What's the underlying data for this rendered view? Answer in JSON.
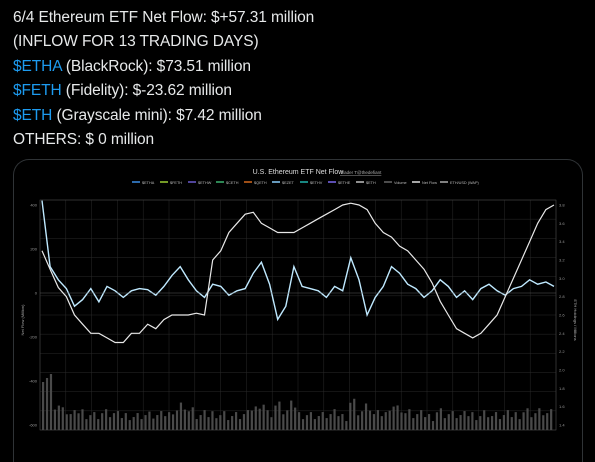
{
  "post": {
    "line1": "6/4 Ethereum ETF Net Flow: $+57.31 million",
    "line2": "(INFLOW FOR 13 TRADING DAYS)",
    "line3": {
      "tag": "$ETHA",
      "rest": " (BlackRock): $73.51 million"
    },
    "line4": {
      "tag": "$FETH",
      "rest": " (Fidelity): $-23.62 million"
    },
    "line5": {
      "tag": "$ETH",
      "rest": " (Grayscale mini): $7.42 million"
    },
    "line6": "OTHERS: $ 0 million"
  },
  "colors": {
    "cashtag": "#1d9bf0",
    "flow_line": "#bfe9ff",
    "eth_price_line": "#e8e8e8",
    "aum_line": "#8a8a8a",
    "volume_bars": "#4a4a4a",
    "grid": "#2a2a2a"
  },
  "chart_data": {
    "type": "line",
    "title": "U.S. Ethereum ETF Net Flow",
    "subtitle": "Trader T@thedefiant",
    "legend": [
      "$ETHA",
      "$FETH",
      "$ETHW",
      "$CETH",
      "$QETH",
      "$EZET",
      "$ETHV",
      "$ETHE",
      "$ETH",
      "Volume",
      "Net Flow",
      "ETH/USD (WAP)"
    ],
    "legend_placement": "top",
    "ylabel_left": "Net Flow (Million)",
    "ylabel_right": "ETH Holdings / Millions",
    "y_left_ticks": [
      "400",
      "200",
      "0",
      "-200",
      "-400",
      "-600"
    ],
    "y_right_ticks": [
      "3.8",
      "3.6",
      "3.4",
      "3.2",
      "3.0",
      "2.8",
      "2.6",
      "2.4",
      "2.2",
      "2.0",
      "1.8",
      "1.6",
      "1.4"
    ],
    "series": [
      {
        "name": "Net Flow",
        "values": [
          420,
          120,
          60,
          20,
          -60,
          -30,
          20,
          -40,
          30,
          10,
          -20,
          10,
          20,
          15,
          -10,
          30,
          80,
          120,
          60,
          10,
          -20,
          40,
          30,
          -10,
          10,
          20,
          90,
          140,
          40,
          -120,
          -60,
          120,
          30,
          20,
          10,
          -20,
          30,
          10,
          160,
          60,
          -100,
          -20,
          30,
          120,
          90,
          40,
          20,
          -20,
          10,
          60,
          30,
          -20,
          10,
          -30,
          20,
          40,
          10,
          -10,
          20,
          30,
          60,
          40,
          50,
          30
        ]
      },
      {
        "name": "ETH/USD (WAP)",
        "values": [
          3.3,
          3.1,
          2.9,
          2.8,
          2.6,
          2.5,
          2.4,
          2.4,
          2.35,
          2.3,
          2.3,
          2.4,
          2.4,
          2.5,
          2.45,
          2.55,
          2.6,
          2.6,
          2.6,
          2.62,
          2.6,
          3.2,
          3.3,
          3.5,
          3.6,
          3.7,
          3.72,
          3.6,
          3.55,
          3.5,
          3.5,
          3.5,
          3.55,
          3.6,
          3.65,
          3.7,
          3.75,
          3.8,
          3.82,
          3.8,
          3.75,
          3.6,
          3.5,
          3.45,
          3.35,
          3.3,
          3.2,
          3.1,
          2.95,
          2.75,
          2.6,
          2.45,
          2.4,
          2.35,
          2.4,
          2.5,
          2.6,
          2.8,
          3.0,
          3.2,
          3.4,
          3.6,
          3.75,
          3.8
        ]
      }
    ]
  }
}
